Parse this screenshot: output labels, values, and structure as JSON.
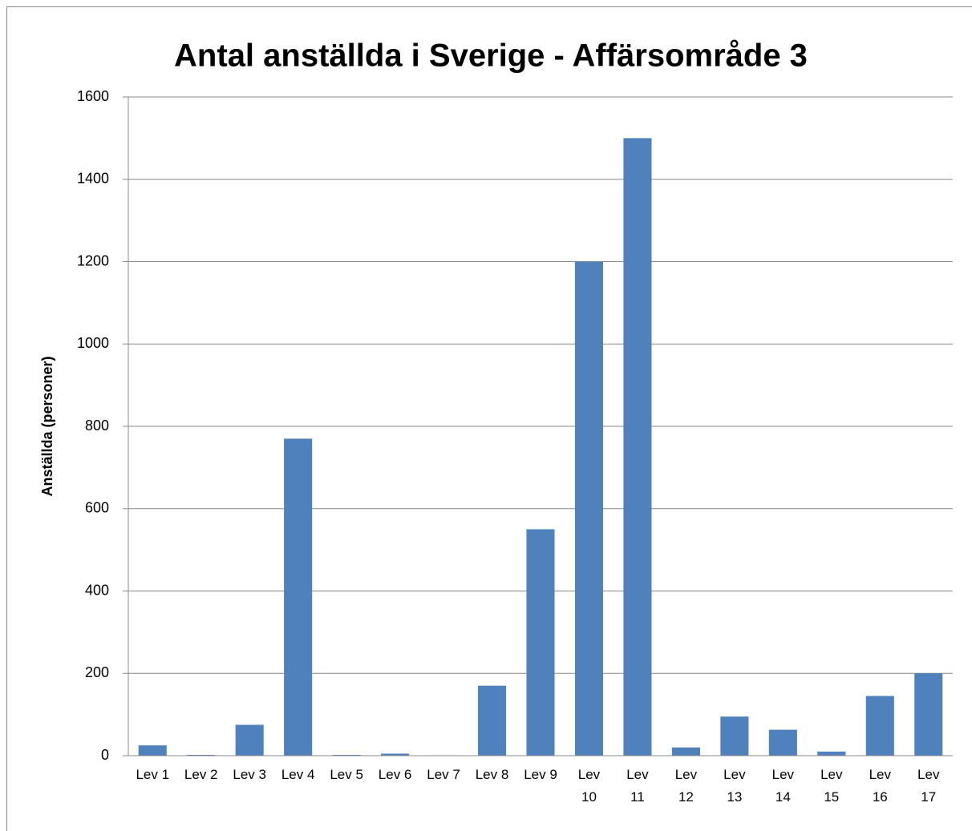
{
  "chart_data": {
    "type": "bar",
    "title": "Antal anställda i Sverige - Affärsområde 3",
    "y_label": "Anställda (personer)",
    "categories": [
      "Lev 1",
      "Lev 2",
      "Lev 3",
      "Lev 4",
      "Lev 5",
      "Lev 6",
      "Lev 7",
      "Lev 8",
      "Lev 9",
      "Lev 10",
      "Lev 11",
      "Lev 12",
      "Lev 13",
      "Lev 14",
      "Lev 15",
      "Lev 16",
      "Lev 17"
    ],
    "values": [
      25,
      2,
      75,
      770,
      2,
      5,
      1,
      170,
      550,
      1200,
      1500,
      20,
      95,
      63,
      10,
      145,
      200
    ],
    "color": "#4f81bd",
    "ylim": [
      0,
      1600
    ],
    "yticks": [
      0,
      200,
      400,
      600,
      800,
      1000,
      1200,
      1400,
      1600
    ],
    "grid": true
  }
}
